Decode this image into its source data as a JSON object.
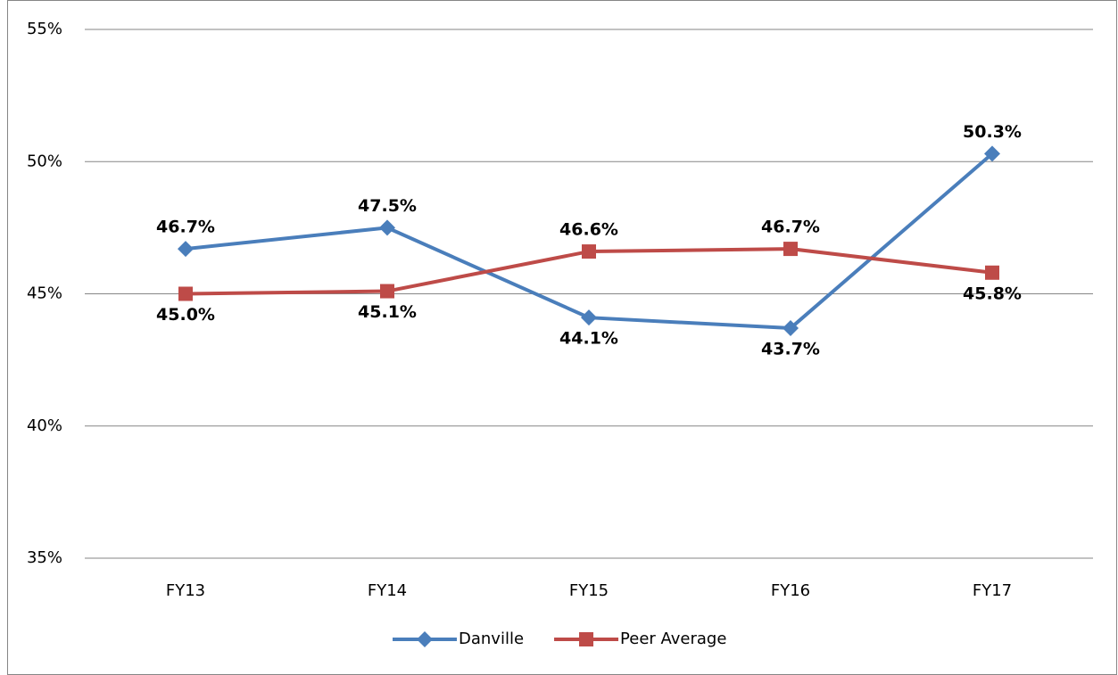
{
  "chart_data": {
    "type": "line",
    "categories": [
      "FY13",
      "FY14",
      "FY15",
      "FY16",
      "FY17"
    ],
    "series": [
      {
        "name": "Danville",
        "color": "#4a7ebb",
        "marker": "diamond",
        "values": [
          46.7,
          47.5,
          44.1,
          43.7,
          50.3
        ],
        "value_labels": [
          "46.7%",
          "47.5%",
          "44.1%",
          "43.7%",
          "50.3%"
        ]
      },
      {
        "name": "Peer Average",
        "color": "#be4b48",
        "marker": "square",
        "values": [
          45.0,
          45.1,
          46.6,
          46.7,
          45.8
        ],
        "value_labels": [
          "45.0%",
          "45.1%",
          "46.6%",
          "46.7%",
          "45.8%"
        ]
      }
    ],
    "ylim": [
      35,
      55
    ],
    "yticks": [
      {
        "value": 35,
        "label": "35%"
      },
      {
        "value": 40,
        "label": "40%"
      },
      {
        "value": 45,
        "label": "45%"
      },
      {
        "value": 50,
        "label": "50%"
      },
      {
        "value": 55,
        "label": "55%"
      }
    ],
    "grid": true,
    "legend": "bottom"
  }
}
